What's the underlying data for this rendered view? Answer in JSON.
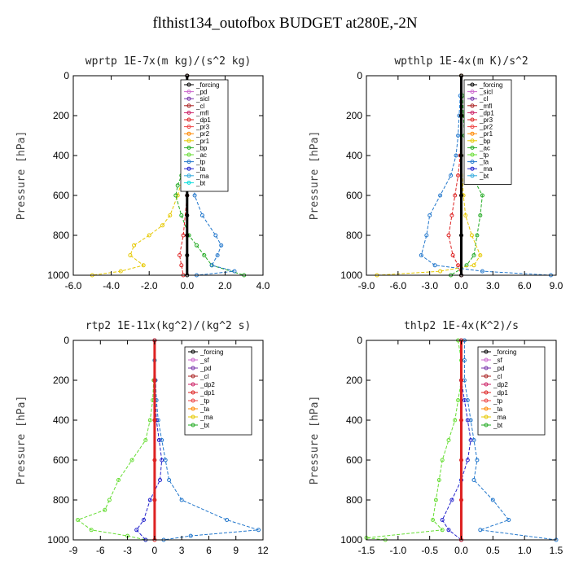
{
  "suptitle": "flthist134_outofbox  BUDGET at280E,-2N",
  "chart_data": [
    {
      "type": "line",
      "title": "wprtp  1E-7x(m kg)/(s^2 kg)",
      "ylabel": "Pressure [hPa]",
      "xlim": [
        -6,
        4
      ],
      "ylim": [
        1000,
        0
      ],
      "xticks": [
        "-6.0",
        "-4.0",
        "-2.0",
        "0.0",
        "2.0",
        "4.0"
      ],
      "yticks": [
        "0",
        "200",
        "400",
        "600",
        "800",
        "1000"
      ],
      "legend": [
        "_forcing",
        "_pd",
        "_sicl",
        "_cl",
        "_mfl",
        "_dp1",
        "_pr3",
        "_pr2",
        "_pr1",
        "_bp",
        "_ac",
        "_tp",
        "_ta",
        "_ma",
        "_bt"
      ],
      "series": [
        {
          "name": "_pr1",
          "color": "#e6c800",
          "p": [
            0,
            100,
            200,
            300,
            400,
            500,
            600,
            700,
            750,
            800,
            850,
            900,
            950,
            980,
            1000
          ],
          "x": [
            0,
            0,
            -0.05,
            -0.1,
            -0.15,
            -0.2,
            -0.5,
            -0.9,
            -1.3,
            -2,
            -2.8,
            -3,
            -2.3,
            -3.5,
            -5
          ]
        },
        {
          "name": "_ac",
          "color": "#22aa22",
          "p": [
            0,
            100,
            200,
            300,
            400,
            500,
            550,
            600,
            700,
            800,
            850,
            900,
            950,
            1000
          ],
          "x": [
            0,
            0,
            0,
            -0.05,
            -0.1,
            -0.3,
            -0.5,
            -0.6,
            -0.3,
            0.1,
            0.5,
            0.9,
            1.3,
            3
          ]
        },
        {
          "name": "_tp",
          "color": "#2277cc",
          "p": [
            0,
            100,
            200,
            300,
            400,
            500,
            600,
            700,
            800,
            850,
            900,
            950,
            980,
            1000
          ],
          "x": [
            0,
            0.05,
            0.1,
            0.1,
            0.2,
            0.3,
            0.4,
            0.8,
            1.5,
            1.8,
            1.6,
            1.3,
            2.5,
            0.5
          ]
        },
        {
          "name": "_dp1",
          "color": "#dd2222",
          "p": [
            0,
            200,
            400,
            600,
            800,
            900,
            950,
            1000
          ],
          "x": [
            0,
            0,
            0,
            0,
            -0.2,
            -0.4,
            -0.3,
            -0.2
          ]
        },
        {
          "name": "_forcing",
          "color": "#000000",
          "p": [
            0,
            100,
            200,
            300,
            400,
            500,
            600,
            700,
            800,
            900,
            1000
          ],
          "x": [
            0,
            0,
            0,
            0,
            0,
            0,
            0,
            0,
            0,
            0,
            0
          ]
        }
      ]
    },
    {
      "type": "line",
      "title": "wpthlp  1E-4x(m K)/s^2",
      "ylabel": "Pressure [hPa]",
      "xlim": [
        -9,
        9
      ],
      "ylim": [
        1000,
        0
      ],
      "xticks": [
        "-9.0",
        "-6.0",
        "-3.0",
        "0.0",
        "3.0",
        "6.0",
        "9.0"
      ],
      "yticks": [
        "0",
        "200",
        "400",
        "600",
        "800",
        "1000"
      ],
      "legend": [
        "_forcing",
        "_sicl",
        "_cl",
        "_mfl",
        "_dp1",
        "_pr3",
        "_pr2",
        "_pr1",
        "_bp",
        "_ac",
        "_tp",
        "_ta",
        "_ma",
        "_bt"
      ],
      "series": [
        {
          "name": "_tp",
          "color": "#2277cc",
          "p": [
            0,
            100,
            200,
            300,
            400,
            500,
            600,
            700,
            800,
            900,
            950,
            980,
            1000
          ],
          "x": [
            0,
            -0.1,
            -0.2,
            -0.3,
            -0.5,
            -1,
            -2,
            -3,
            -3.3,
            -3.8,
            -2.5,
            2,
            8.5
          ]
        },
        {
          "name": "_ac",
          "color": "#22aa22",
          "p": [
            0,
            100,
            200,
            300,
            400,
            500,
            600,
            700,
            800,
            900,
            950,
            1000
          ],
          "x": [
            0,
            0.1,
            0.2,
            0.3,
            0.5,
            1,
            2,
            1.8,
            1.5,
            1.2,
            0.5,
            -1
          ]
        },
        {
          "name": "_pr1",
          "color": "#e6c800",
          "p": [
            0,
            200,
            400,
            600,
            700,
            800,
            900,
            950,
            980,
            1000
          ],
          "x": [
            0,
            0,
            0,
            0.2,
            0.4,
            1,
            1.8,
            1.2,
            -2,
            -8
          ]
        },
        {
          "name": "_dp1",
          "color": "#dd2222",
          "p": [
            0,
            200,
            400,
            500,
            600,
            700,
            800,
            900,
            950,
            1000
          ],
          "x": [
            0,
            0,
            -0.1,
            -0.3,
            -0.6,
            -0.9,
            -1.2,
            -0.8,
            -0.3,
            0
          ]
        },
        {
          "name": "_forcing",
          "color": "#000000",
          "p": [
            0,
            200,
            400,
            600,
            800,
            1000
          ],
          "x": [
            0,
            0,
            0,
            0,
            0,
            0
          ]
        }
      ]
    },
    {
      "type": "line",
      "title": "rtp2  1E-11x(kg^2)/(kg^2 s)",
      "ylabel": "Pressure [hPa]",
      "xlim": [
        -9,
        12
      ],
      "ylim": [
        1000,
        0
      ],
      "xticks": [
        "-9",
        "-6",
        "-3",
        "0",
        "3",
        "6",
        "9",
        "12"
      ],
      "yticks": [
        "0",
        "200",
        "400",
        "600",
        "800",
        "1000"
      ],
      "legend": [
        "_forcing",
        "_sf",
        "_pd",
        "_cl",
        "_dp2",
        "_dp1",
        "_tp",
        "_ta",
        "_ma",
        "_bt"
      ],
      "series": [
        {
          "name": "_dp1",
          "color": "#66dd33",
          "p": [
            0,
            100,
            200,
            300,
            400,
            500,
            600,
            700,
            800,
            850,
            900,
            950,
            980,
            1000
          ],
          "x": [
            0,
            0,
            -0.1,
            -0.2,
            -0.5,
            -1,
            -2.5,
            -4,
            -5,
            -5.5,
            -8.5,
            -7,
            -3,
            -1
          ]
        },
        {
          "name": "_tp",
          "color": "#2277cc",
          "p": [
            0,
            100,
            200,
            300,
            400,
            500,
            600,
            700,
            800,
            900,
            950,
            980,
            1000
          ],
          "x": [
            0,
            0,
            0.1,
            0.2,
            0.4,
            0.8,
            1.2,
            1.6,
            3,
            8,
            11.5,
            4,
            1
          ]
        },
        {
          "name": "_ta",
          "color": "#2222cc",
          "p": [
            0,
            200,
            400,
            500,
            600,
            700,
            800,
            900,
            950,
            1000
          ],
          "x": [
            0,
            0,
            0.2,
            0.5,
            0.8,
            0.6,
            -0.5,
            -1.2,
            -2,
            -1
          ]
        },
        {
          "name": "_forcing",
          "color": "#dd2222",
          "p": [
            0,
            200,
            400,
            600,
            800,
            1000
          ],
          "x": [
            0,
            0,
            0,
            0,
            0,
            0
          ]
        }
      ]
    },
    {
      "type": "line",
      "title": "thlp2  1E-4x(K^2)/s",
      "ylabel": "Pressure [hPa]",
      "xlim": [
        -1.5,
        1.5
      ],
      "ylim": [
        1000,
        0
      ],
      "xticks": [
        "-1.5",
        "-1.0",
        "-0.5",
        "0.0",
        "0.5",
        "1.0",
        "1.5"
      ],
      "yticks": [
        "0",
        "200",
        "400",
        "600",
        "800",
        "1000"
      ],
      "legend": [
        "_forcing",
        "_sf",
        "_pd",
        "_cl",
        "_dp2",
        "_dp1",
        "_tp",
        "_ta",
        "_ma",
        "_bt"
      ],
      "series": [
        {
          "name": "_dp1",
          "color": "#66dd33",
          "p": [
            0,
            100,
            200,
            300,
            400,
            500,
            600,
            700,
            800,
            900,
            950,
            990,
            1000
          ],
          "x": [
            -0.05,
            0,
            0,
            -0.05,
            -0.1,
            -0.2,
            -0.3,
            -0.35,
            -0.4,
            -0.45,
            -0.3,
            -1.5,
            -1.2
          ]
        },
        {
          "name": "_tp",
          "color": "#2277cc",
          "p": [
            0,
            100,
            200,
            300,
            400,
            500,
            600,
            700,
            800,
            900,
            950,
            1000
          ],
          "x": [
            0.05,
            0.05,
            0.05,
            0.1,
            0.15,
            0.2,
            0.25,
            0.2,
            0.5,
            0.75,
            0.3,
            1.5
          ]
        },
        {
          "name": "_ta",
          "color": "#2222cc",
          "p": [
            0,
            200,
            300,
            400,
            500,
            600,
            700,
            800,
            900,
            950,
            1000
          ],
          "x": [
            0,
            0,
            0.05,
            0.1,
            0.15,
            0.1,
            0,
            -0.15,
            -0.3,
            -0.2,
            0
          ]
        },
        {
          "name": "_forcing",
          "color": "#dd2222",
          "p": [
            0,
            200,
            400,
            600,
            800,
            1000
          ],
          "x": [
            0,
            0,
            0,
            0,
            0,
            0
          ]
        }
      ]
    }
  ]
}
